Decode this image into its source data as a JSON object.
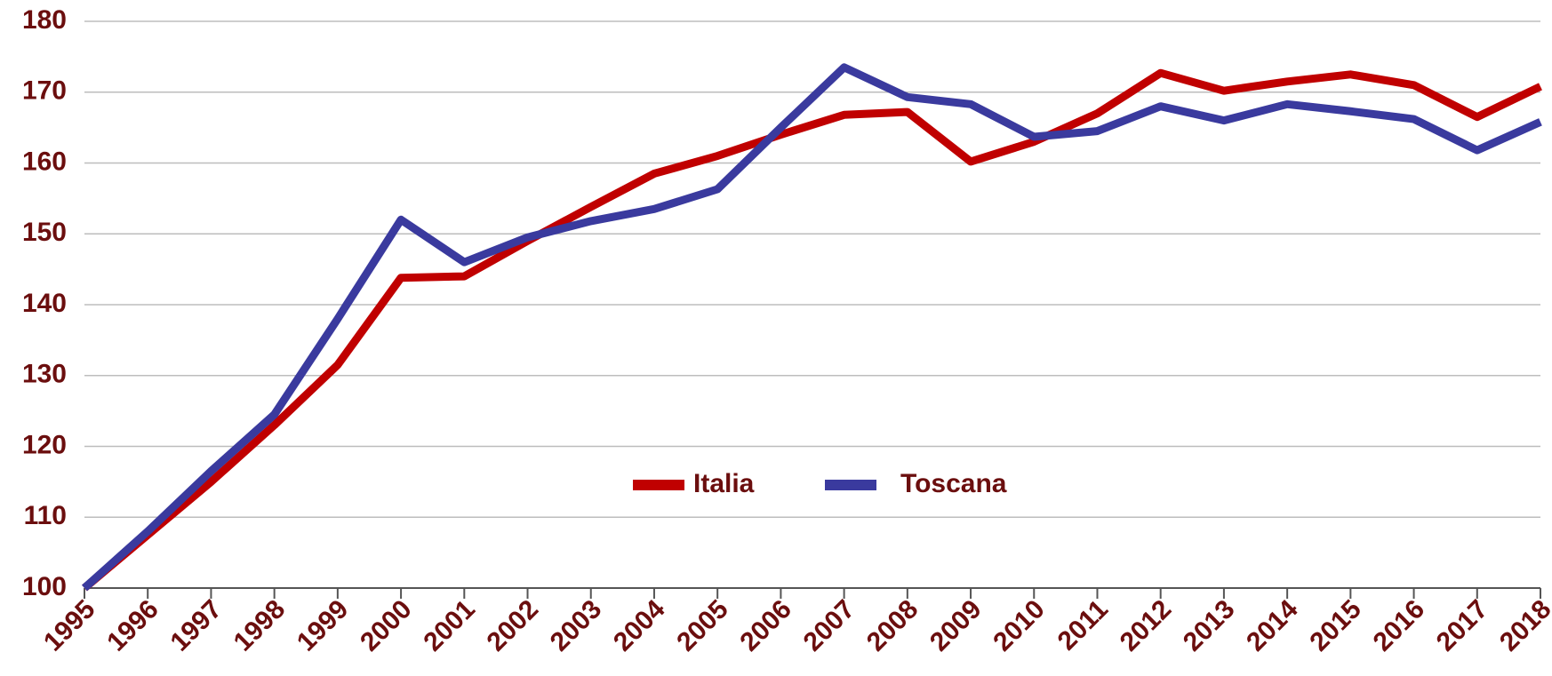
{
  "chart_data": {
    "type": "line",
    "categories": [
      "1995",
      "1996",
      "1997",
      "1998",
      "1999",
      "2000",
      "2001",
      "2002",
      "2003",
      "2004",
      "2005",
      "2006",
      "2007",
      "2008",
      "2009",
      "2010",
      "2011",
      "2012",
      "2013",
      "2014",
      "2015",
      "2016",
      "2017",
      "2018"
    ],
    "series": [
      {
        "name": "Italia",
        "color": "#c00000",
        "values": [
          100,
          107.5,
          115,
          123,
          131.5,
          143.8,
          144,
          149,
          153.8,
          158.5,
          161,
          164,
          166.8,
          167.2,
          160.2,
          163,
          167,
          172.7,
          170.2,
          171.5,
          172.5,
          171,
          166.5,
          170.8
        ]
      },
      {
        "name": "Toscana",
        "color": "#3a3a9e",
        "values": [
          100,
          108,
          116.5,
          124.5,
          138,
          152,
          146,
          149.5,
          151.8,
          153.5,
          156.3,
          165,
          173.5,
          169.3,
          168.3,
          163.7,
          164.5,
          168,
          166,
          168.3,
          167.3,
          166.2,
          161.8,
          165.8
        ]
      }
    ],
    "ylim": [
      100,
      180
    ],
    "yticks": [
      100,
      110,
      120,
      130,
      140,
      150,
      160,
      170,
      180
    ],
    "grid": true,
    "legend": "center"
  }
}
